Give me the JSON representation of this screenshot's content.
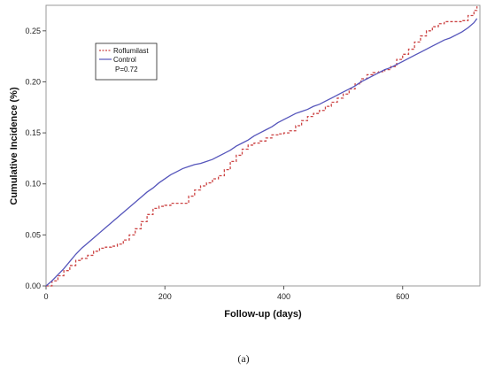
{
  "chart_data": {
    "type": "line",
    "xlabel": "Follow-up (days)",
    "ylabel": "Cumulative Incidence (%)",
    "xlim": [
      0,
      730
    ],
    "ylim": [
      0,
      0.275
    ],
    "xticks": [
      0,
      200,
      400,
      600
    ],
    "yticks": [
      0.0,
      0.05,
      0.1,
      0.15,
      0.2,
      0.25
    ],
    "ytick_labels": [
      "0.00",
      "0.05",
      "0.10",
      "0.15",
      "0.20",
      "0.25"
    ],
    "grid": false,
    "legend_position": "top-left",
    "annotation": "P=0.72",
    "series": [
      {
        "name": "Roflumilast",
        "color": "#cc4444",
        "style": "dashed-step",
        "x": [
          0,
          10,
          20,
          30,
          40,
          50,
          60,
          70,
          80,
          90,
          100,
          110,
          120,
          130,
          140,
          150,
          160,
          170,
          180,
          190,
          200,
          210,
          220,
          230,
          240,
          250,
          260,
          270,
          280,
          290,
          300,
          310,
          320,
          330,
          340,
          350,
          360,
          370,
          380,
          390,
          400,
          410,
          420,
          430,
          440,
          450,
          460,
          470,
          480,
          490,
          500,
          510,
          520,
          530,
          540,
          550,
          560,
          570,
          580,
          590,
          600,
          610,
          620,
          630,
          640,
          650,
          660,
          670,
          680,
          690,
          700,
          710,
          720,
          725
        ],
        "y": [
          0.0,
          0.005,
          0.01,
          0.015,
          0.02,
          0.025,
          0.027,
          0.03,
          0.034,
          0.037,
          0.038,
          0.039,
          0.041,
          0.045,
          0.05,
          0.056,
          0.063,
          0.07,
          0.076,
          0.078,
          0.079,
          0.081,
          0.081,
          0.081,
          0.088,
          0.094,
          0.098,
          0.101,
          0.105,
          0.108,
          0.114,
          0.122,
          0.128,
          0.134,
          0.138,
          0.14,
          0.142,
          0.145,
          0.148,
          0.149,
          0.15,
          0.152,
          0.157,
          0.162,
          0.166,
          0.169,
          0.172,
          0.176,
          0.18,
          0.184,
          0.188,
          0.193,
          0.198,
          0.203,
          0.207,
          0.209,
          0.21,
          0.212,
          0.215,
          0.222,
          0.227,
          0.232,
          0.239,
          0.245,
          0.25,
          0.254,
          0.257,
          0.259,
          0.259,
          0.259,
          0.26,
          0.265,
          0.27,
          0.274
        ]
      },
      {
        "name": "Control",
        "color": "#5555bb",
        "style": "solid",
        "x": [
          0,
          10,
          20,
          30,
          40,
          50,
          60,
          70,
          80,
          90,
          100,
          110,
          120,
          130,
          140,
          150,
          160,
          170,
          180,
          190,
          200,
          210,
          220,
          230,
          240,
          250,
          260,
          270,
          280,
          290,
          300,
          310,
          320,
          330,
          340,
          350,
          360,
          370,
          380,
          390,
          400,
          410,
          420,
          430,
          440,
          450,
          460,
          470,
          480,
          490,
          500,
          510,
          520,
          530,
          540,
          550,
          560,
          570,
          580,
          590,
          600,
          610,
          620,
          630,
          640,
          650,
          660,
          670,
          680,
          690,
          700,
          710,
          720,
          725
        ],
        "y": [
          0.0,
          0.005,
          0.011,
          0.017,
          0.024,
          0.031,
          0.037,
          0.042,
          0.047,
          0.052,
          0.057,
          0.062,
          0.067,
          0.072,
          0.077,
          0.082,
          0.087,
          0.092,
          0.096,
          0.101,
          0.105,
          0.109,
          0.112,
          0.115,
          0.117,
          0.119,
          0.12,
          0.122,
          0.124,
          0.127,
          0.13,
          0.133,
          0.137,
          0.14,
          0.143,
          0.147,
          0.15,
          0.153,
          0.156,
          0.16,
          0.163,
          0.166,
          0.169,
          0.171,
          0.173,
          0.176,
          0.178,
          0.181,
          0.184,
          0.187,
          0.19,
          0.193,
          0.196,
          0.2,
          0.203,
          0.206,
          0.209,
          0.212,
          0.214,
          0.217,
          0.22,
          0.223,
          0.226,
          0.229,
          0.232,
          0.235,
          0.238,
          0.241,
          0.243,
          0.246,
          0.249,
          0.253,
          0.258,
          0.262
        ]
      }
    ]
  },
  "caption": "(a)"
}
